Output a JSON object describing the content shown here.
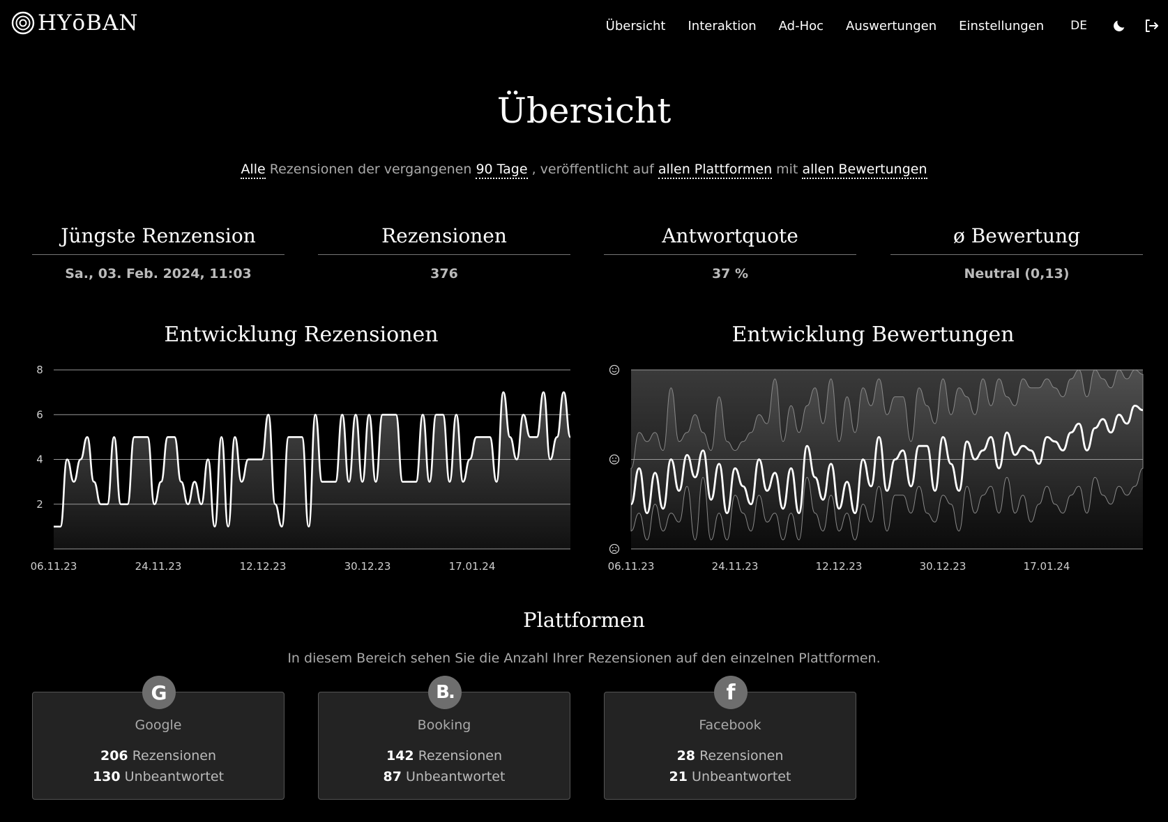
{
  "header": {
    "logo_text": "HYōBAN",
    "nav": [
      "Übersicht",
      "Interaktion",
      "Ad-Hoc",
      "Auswertungen",
      "Einstellungen"
    ],
    "lang": "DE",
    "icons": [
      "moon-icon",
      "logout-icon"
    ]
  },
  "page": {
    "title": "Übersicht",
    "filter": {
      "scope": "Alle",
      "t1": " Rezensionen der vergangenen ",
      "period": "90 Tage",
      "t2": " , veröffentlicht auf ",
      "platforms": "allen Plattformen",
      "t3": " mit ",
      "ratings": "allen Bewertungen"
    }
  },
  "stats": [
    {
      "title": "Jüngste Renzension",
      "value": "Sa., 03. Feb. 2024, 11:03"
    },
    {
      "title": "Rezensionen",
      "value": "376"
    },
    {
      "title": "Antwortquote",
      "value": "37 %"
    },
    {
      "title": "ø Bewertung",
      "value": "Neutral (0,13)"
    }
  ],
  "chart_data": [
    {
      "type": "line",
      "title": "Entwicklung Rezensionen",
      "x_ticks": [
        "06.11.23",
        "24.11.23",
        "12.12.23",
        "30.12.23",
        "17.01.24"
      ],
      "y_ticks": [
        2,
        4,
        6,
        8
      ],
      "ylim": [
        0,
        8
      ],
      "grid": true,
      "values": [
        1,
        1,
        4,
        3,
        4,
        5,
        3,
        2,
        2,
        5,
        2,
        2,
        5,
        5,
        5,
        2,
        3,
        5,
        5,
        3,
        2,
        3,
        2,
        4,
        1,
        5,
        1,
        5,
        3,
        4,
        4,
        4,
        6,
        2,
        1,
        5,
        5,
        5,
        1,
        6,
        3,
        3,
        3,
        6,
        3,
        6,
        3,
        6,
        3,
        6,
        6,
        6,
        3,
        3,
        3,
        6,
        3,
        6,
        6,
        3,
        6,
        3,
        4,
        5,
        5,
        5,
        3,
        7,
        5,
        4,
        6,
        5,
        5,
        7,
        4,
        5,
        7,
        5
      ]
    },
    {
      "type": "area",
      "title": "Entwicklung Bewertungen",
      "x_ticks": [
        "06.11.23",
        "24.11.23",
        "12.12.23",
        "30.12.23",
        "17.01.24"
      ],
      "y_ticks": [
        "sad-icon",
        "neutral-icon",
        "happy-icon"
      ],
      "ylim": [
        -1,
        1
      ],
      "grid": true,
      "mean": [
        -0.5,
        -0.1,
        -0.6,
        -0.15,
        -0.55,
        0.0,
        -0.35,
        0.05,
        -0.2,
        0.1,
        -0.45,
        -0.05,
        -0.6,
        -0.1,
        -0.3,
        -0.5,
        0.0,
        -0.35,
        -0.15,
        -0.55,
        -0.1,
        -0.6,
        0.15,
        -0.2,
        -0.45,
        -0.05,
        -0.55,
        -0.25,
        -0.6,
        0.0,
        -0.3,
        0.25,
        -0.35,
        0.0,
        0.1,
        -0.3,
        0.15,
        0.15,
        -0.35,
        0.25,
        -0.05,
        -0.35,
        0.2,
        0.0,
        0.1,
        0.25,
        -0.1,
        0.3,
        0.05,
        0.15,
        0.1,
        -0.05,
        0.25,
        0.2,
        0.1,
        0.3,
        0.4,
        0.1,
        0.35,
        0.45,
        0.3,
        0.5,
        0.4,
        0.6,
        0.55
      ],
      "upper": [
        -0.1,
        0.3,
        0.2,
        0.3,
        0.1,
        0.8,
        0.2,
        0.3,
        0.5,
        0.3,
        0.1,
        0.7,
        0.2,
        0.1,
        0.2,
        0.3,
        0.5,
        0.4,
        0.9,
        0.2,
        0.6,
        0.3,
        0.6,
        0.8,
        0.4,
        0.9,
        0.2,
        0.7,
        0.3,
        0.8,
        0.6,
        0.9,
        0.5,
        0.7,
        0.7,
        0.2,
        0.8,
        0.6,
        0.4,
        0.9,
        0.5,
        0.8,
        0.7,
        0.5,
        0.9,
        0.6,
        0.9,
        0.7,
        0.6,
        0.9,
        0.8,
        0.8,
        0.9,
        0.8,
        0.7,
        0.9,
        1.0,
        0.7,
        1.0,
        0.9,
        0.8,
        1.0,
        0.9,
        1.0,
        0.95
      ],
      "lower": [
        -0.8,
        -0.6,
        -0.9,
        -0.5,
        -0.8,
        -0.6,
        -0.7,
        -0.3,
        -0.9,
        -0.2,
        -0.9,
        -0.6,
        -0.9,
        -0.4,
        -0.6,
        -0.8,
        -0.4,
        -0.7,
        -0.6,
        -0.9,
        -0.6,
        -0.9,
        -0.2,
        -0.6,
        -0.8,
        -0.4,
        -0.8,
        -0.6,
        -0.9,
        -0.5,
        -0.7,
        -0.3,
        -0.8,
        -0.4,
        -0.4,
        -0.6,
        -0.3,
        -0.6,
        -0.7,
        -0.4,
        -0.5,
        -0.8,
        -0.3,
        -0.6,
        -0.4,
        -0.3,
        -0.6,
        -0.2,
        -0.6,
        -0.4,
        -0.7,
        -0.5,
        -0.3,
        -0.5,
        -0.6,
        -0.4,
        -0.3,
        -0.6,
        -0.2,
        -0.4,
        -0.5,
        -0.3,
        -0.4,
        -0.3,
        -0.1
      ]
    }
  ],
  "platforms_section": {
    "title": "Plattformen",
    "description": "In diesem Bereich sehen Sie die Anzahl Ihrer Rezensionen auf den einzelnen Plattformen.",
    "reviews_label": "Rezensionen",
    "unanswered_label": "Unbeantwortet",
    "items": [
      {
        "name": "Google",
        "icon": "G",
        "icon_name": "google-icon",
        "reviews": "206",
        "unanswered": "130"
      },
      {
        "name": "Booking",
        "icon": "B.",
        "icon_name": "booking-icon",
        "reviews": "142",
        "unanswered": "87"
      },
      {
        "name": "Facebook",
        "icon": "f",
        "icon_name": "facebook-icon",
        "reviews": "28",
        "unanswered": "21"
      }
    ]
  }
}
